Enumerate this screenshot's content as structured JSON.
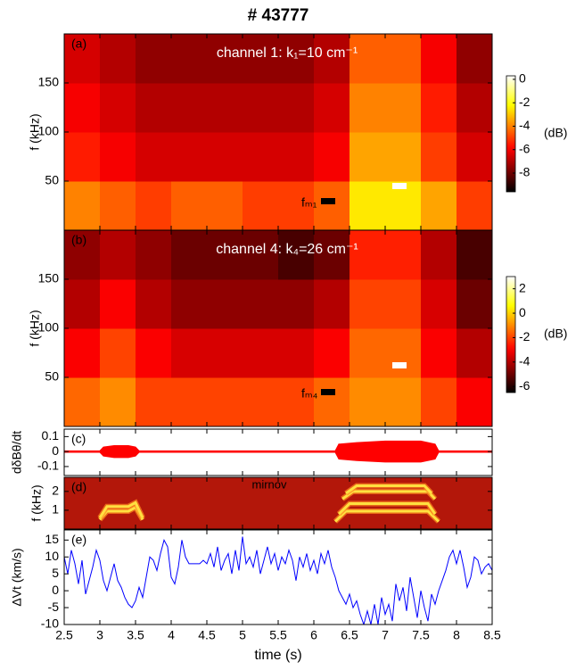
{
  "title": "# 43777",
  "chart_data": [
    {
      "type": "heatmap",
      "panel_label": "(a)",
      "label": "channel 1: k₁=10 cm⁻¹",
      "marker_label": "fₘ₁",
      "ylabel": "f (kHz)",
      "xlim": [
        2.5,
        8.5
      ],
      "ylim": [
        0,
        200
      ],
      "yticks": [
        50,
        100,
        150
      ],
      "x_edges": [
        2.5,
        3,
        3.5,
        4,
        4.5,
        5,
        5.5,
        6,
        6.5,
        7,
        7.5,
        8,
        8.5
      ],
      "y_edges": [
        0,
        50,
        100,
        150,
        200
      ],
      "z": [
        [
          -4,
          -4.5,
          -5,
          -4.5,
          -4.5,
          -5,
          -5,
          -4.5,
          -2.5,
          -2.5,
          -3.5,
          -5
        ],
        [
          -5.5,
          -6,
          -6.5,
          -6.5,
          -6.5,
          -6.5,
          -6.5,
          -6,
          -3.5,
          -3.5,
          -5,
          -6.5
        ],
        [
          -6,
          -6.5,
          -7,
          -7,
          -7,
          -7,
          -7,
          -6.5,
          -4,
          -4,
          -5.5,
          -7
        ],
        [
          -6.5,
          -7,
          -7.5,
          -7.5,
          -7.5,
          -7.5,
          -7.5,
          -7,
          -4.5,
          -4.5,
          -6,
          -7.5
        ]
      ],
      "colormap": "hot",
      "clim": [
        -9.6,
        0.3
      ],
      "colorbar_ticks": [
        0,
        -2,
        -4,
        -6,
        -8
      ],
      "colorbar_label": "(dB)"
    },
    {
      "type": "heatmap",
      "panel_label": "(b)",
      "label": "channel 4: k₄=26 cm⁻¹",
      "marker_label": "fₘ₄",
      "ylabel": "f (kHz)",
      "xlim": [
        2.5,
        8.5
      ],
      "ylim": [
        0,
        200
      ],
      "yticks": [
        50,
        100,
        150
      ],
      "x_edges": [
        2.5,
        3,
        3.5,
        4,
        4.5,
        5,
        5.5,
        6,
        6.5,
        7,
        7.5,
        8,
        8.5
      ],
      "y_edges": [
        0,
        50,
        100,
        150,
        200
      ],
      "z": [
        [
          -1.5,
          -1,
          -2,
          -2,
          -2,
          -2,
          -2,
          -1.5,
          -1,
          -1,
          -2,
          -3
        ],
        [
          -3,
          -2,
          -3,
          -3.5,
          -3.5,
          -3.5,
          -3.5,
          -3,
          -1.5,
          -1.5,
          -3,
          -4
        ],
        [
          -4,
          -3,
          -4,
          -4.5,
          -4.5,
          -4.5,
          -4.5,
          -4,
          -2,
          -2,
          -3.5,
          -5
        ],
        [
          -4.5,
          -4,
          -4.5,
          -5,
          -5,
          -5,
          -5.5,
          -5,
          -2.5,
          -2.5,
          -4,
          -5.5
        ]
      ],
      "colormap": "hot",
      "clim": [
        -6.5,
        3
      ],
      "colorbar_ticks": [
        2,
        0,
        -2,
        -4,
        -6
      ],
      "colorbar_label": "(dB)"
    },
    {
      "type": "envelope",
      "panel_label": "(c)",
      "ylabel": "dδBθ/dt",
      "xlim": [
        2.5,
        8.5
      ],
      "ylim": [
        -0.16,
        0.15
      ],
      "yticks": [
        0.1,
        0,
        -0.1
      ],
      "series": [
        {
          "color": "#ff0000",
          "x": [
            2.5,
            3.0,
            3.05,
            3.2,
            3.4,
            3.5,
            3.55,
            6.3,
            6.35,
            6.6,
            7.0,
            7.5,
            7.7,
            7.75,
            8.5
          ],
          "values": [
            0.005,
            0.005,
            0.03,
            0.04,
            0.04,
            0.03,
            0.005,
            0.005,
            0.05,
            0.06,
            0.07,
            0.07,
            0.05,
            0.005,
            0.005
          ]
        }
      ]
    },
    {
      "type": "line",
      "panel_label": "(d)",
      "label": "mirnov",
      "ylabel": "f (kHz)",
      "background": "#b3170a",
      "xlim": [
        2.5,
        8.5
      ],
      "ylim": [
        0,
        2.75
      ],
      "yticks": [
        1,
        2
      ],
      "series": [
        {
          "color": "#ffe040",
          "x": [
            3.0,
            3.1,
            3.4,
            3.5,
            3.6
          ],
          "values": [
            0.5,
            0.95,
            0.95,
            1.15,
            0.5
          ]
        },
        {
          "color": "#ffe040",
          "x": [
            3.0,
            3.1,
            3.4,
            3.5,
            3.6
          ],
          "values": [
            0.6,
            1.2,
            1.2,
            1.4,
            0.6
          ]
        },
        {
          "color": "#ffe040",
          "x": [
            6.3,
            6.45,
            7.6,
            7.75
          ],
          "values": [
            0.4,
            0.95,
            0.95,
            0.4
          ]
        },
        {
          "color": "#ffe040",
          "x": [
            6.35,
            6.5,
            7.6,
            7.7
          ],
          "values": [
            0.8,
            1.35,
            1.35,
            0.8
          ]
        },
        {
          "color": "#ffe040",
          "x": [
            6.4,
            6.55,
            7.6,
            7.7
          ],
          "values": [
            1.6,
            2.0,
            2.0,
            1.6
          ]
        },
        {
          "color": "#ffe040",
          "x": [
            6.45,
            6.6,
            7.55,
            7.65
          ],
          "values": [
            1.9,
            2.3,
            2.3,
            1.9
          ]
        }
      ]
    },
    {
      "type": "line",
      "panel_label": "(e)",
      "ylabel": "ΔVt (km/s)",
      "xlabel": "time (s)",
      "xlim": [
        2.5,
        8.5
      ],
      "xticks": [
        2.5,
        3,
        3.5,
        4,
        4.5,
        5,
        5.5,
        6,
        6.5,
        7,
        7.5,
        8,
        8.5
      ],
      "ylim": [
        -10,
        18
      ],
      "yticks": [
        -10,
        -5,
        0,
        5,
        10,
        15
      ],
      "series": [
        {
          "color": "#0000ff",
          "x": [
            2.5,
            2.55,
            2.6,
            2.65,
            2.7,
            2.75,
            2.8,
            2.85,
            2.9,
            2.95,
            3.0,
            3.05,
            3.1,
            3.15,
            3.2,
            3.25,
            3.3,
            3.35,
            3.4,
            3.45,
            3.5,
            3.55,
            3.6,
            3.65,
            3.7,
            3.75,
            3.8,
            3.85,
            3.9,
            3.95,
            4.0,
            4.05,
            4.1,
            4.15,
            4.2,
            4.25,
            4.3,
            4.35,
            4.4,
            4.45,
            4.5,
            4.55,
            4.6,
            4.65,
            4.7,
            4.75,
            4.8,
            4.85,
            4.9,
            4.95,
            5.0,
            5.05,
            5.1,
            5.15,
            5.2,
            5.25,
            5.3,
            5.35,
            5.4,
            5.45,
            5.5,
            5.55,
            5.6,
            5.65,
            5.7,
            5.75,
            5.8,
            5.85,
            5.9,
            5.95,
            6.0,
            6.05,
            6.1,
            6.15,
            6.2,
            6.25,
            6.3,
            6.35,
            6.4,
            6.45,
            6.5,
            6.55,
            6.6,
            6.65,
            6.7,
            6.75,
            6.8,
            6.85,
            6.9,
            6.95,
            7.0,
            7.05,
            7.1,
            7.15,
            7.2,
            7.25,
            7.3,
            7.35,
            7.4,
            7.45,
            7.5,
            7.55,
            7.6,
            7.65,
            7.7,
            7.75,
            7.8,
            7.85,
            7.9,
            7.95,
            8.0,
            8.05,
            8.1,
            8.15,
            8.2,
            8.25,
            8.3,
            8.35,
            8.4,
            8.45,
            8.5
          ],
          "values": [
            10,
            5,
            12,
            8,
            2,
            9,
            -1,
            3,
            7,
            12,
            9,
            3,
            0,
            4,
            8,
            3,
            1,
            -2,
            -4,
            -5,
            -3,
            1,
            -2,
            4,
            10,
            9,
            6,
            11,
            15,
            13,
            4,
            2,
            7,
            15,
            10,
            8,
            8,
            8,
            8,
            9,
            8,
            11,
            7,
            13,
            6,
            9,
            11,
            5,
            12,
            6,
            16,
            8,
            10,
            7,
            12,
            5,
            9,
            13,
            8,
            11,
            6,
            10,
            8,
            12,
            9,
            3,
            10,
            7,
            11,
            6,
            9,
            5,
            11,
            8,
            12,
            7,
            4,
            0,
            -2,
            -4,
            -1,
            -5,
            -3,
            -7,
            -10,
            -6,
            -10,
            -4,
            -10,
            -2,
            -7,
            -4,
            -9,
            2,
            -3,
            1,
            -6,
            4,
            -2,
            -8,
            0,
            -5,
            -9,
            -1,
            -4,
            0,
            3,
            6,
            10,
            12,
            8,
            12,
            7,
            1,
            4,
            10,
            9,
            5,
            7,
            8,
            6
          ]
        }
      ]
    }
  ]
}
